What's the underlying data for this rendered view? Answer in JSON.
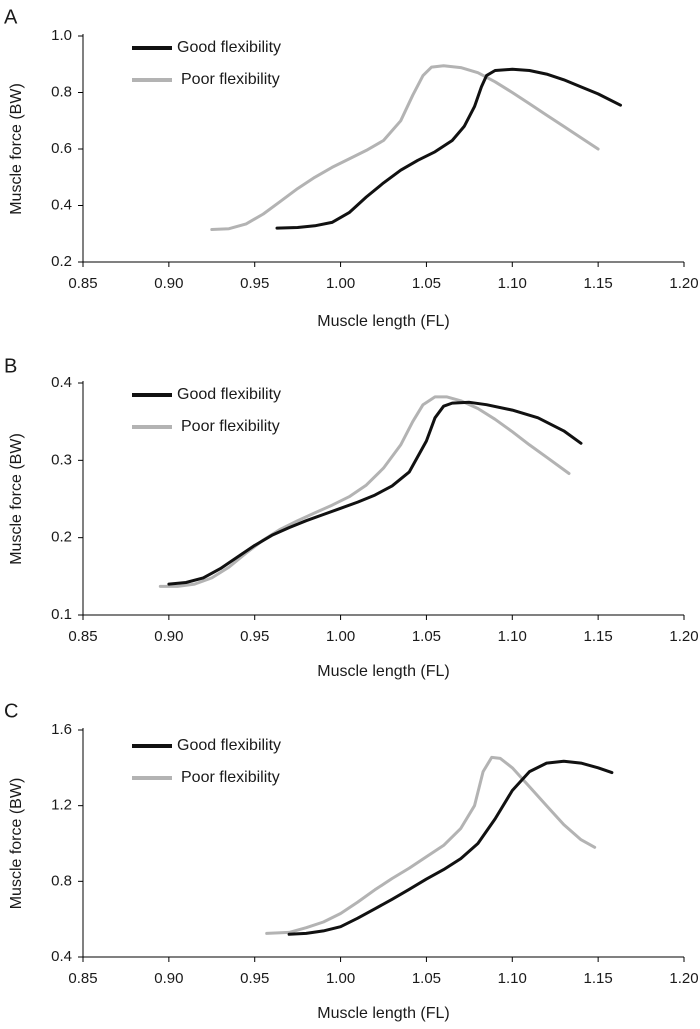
{
  "colors": {
    "good": "#111111",
    "poor": "#b3b3b3",
    "axis": "#000000"
  },
  "chart_data": [
    {
      "type": "line",
      "panel_label": "A",
      "xlabel": "Muscle length (FL)",
      "ylabel": "Muscle force (BW)",
      "xlim": [
        0.85,
        1.2
      ],
      "ylim": [
        0.2,
        1.0
      ],
      "xticks": [
        "0.85",
        "0.90",
        "0.95",
        "1.00",
        "1.05",
        "1.10",
        "1.15",
        "1.20"
      ],
      "xtick_values": [
        0.85,
        0.9,
        0.95,
        1.0,
        1.05,
        1.1,
        1.15,
        1.2
      ],
      "yticks": [
        "0.2",
        "0.4",
        "0.6",
        "0.8",
        "1.0"
      ],
      "ytick_values": [
        0.2,
        0.4,
        0.6,
        0.8,
        1.0
      ],
      "legend_position": "top-left",
      "series": [
        {
          "name": "Good flexibility",
          "color": "#111111",
          "x": [
            0.963,
            0.975,
            0.985,
            0.995,
            1.005,
            1.015,
            1.025,
            1.035,
            1.045,
            1.055,
            1.065,
            1.072,
            1.078,
            1.082,
            1.085,
            1.09,
            1.1,
            1.11,
            1.12,
            1.13,
            1.14,
            1.15,
            1.163
          ],
          "y": [
            0.32,
            0.322,
            0.328,
            0.34,
            0.375,
            0.43,
            0.48,
            0.525,
            0.56,
            0.59,
            0.63,
            0.68,
            0.75,
            0.82,
            0.86,
            0.878,
            0.882,
            0.878,
            0.865,
            0.845,
            0.82,
            0.795,
            0.755
          ]
        },
        {
          "name": "Poor flexibility",
          "color": "#b3b3b3",
          "x": [
            0.925,
            0.935,
            0.945,
            0.955,
            0.965,
            0.975,
            0.985,
            0.995,
            1.005,
            1.015,
            1.025,
            1.035,
            1.042,
            1.048,
            1.053,
            1.06,
            1.07,
            1.08,
            1.09,
            1.1,
            1.11,
            1.12,
            1.13,
            1.14,
            1.15
          ],
          "y": [
            0.315,
            0.318,
            0.335,
            0.37,
            0.415,
            0.46,
            0.5,
            0.535,
            0.565,
            0.595,
            0.63,
            0.7,
            0.79,
            0.86,
            0.89,
            0.895,
            0.888,
            0.87,
            0.838,
            0.8,
            0.76,
            0.72,
            0.68,
            0.64,
            0.6
          ]
        }
      ]
    },
    {
      "type": "line",
      "panel_label": "B",
      "xlabel": "Muscle length (FL)",
      "ylabel": "Muscle force (BW)",
      "xlim": [
        0.85,
        1.2
      ],
      "ylim": [
        0.1,
        0.4
      ],
      "xticks": [
        "0.85",
        "0.90",
        "0.95",
        "1.00",
        "1.05",
        "1.10",
        "1.15",
        "1.20"
      ],
      "xtick_values": [
        0.85,
        0.9,
        0.95,
        1.0,
        1.05,
        1.1,
        1.15,
        1.2
      ],
      "yticks": [
        "0.1",
        "0.2",
        "0.3",
        "0.4"
      ],
      "ytick_values": [
        0.1,
        0.2,
        0.3,
        0.4
      ],
      "legend_position": "top-left",
      "series": [
        {
          "name": "Good flexibility",
          "color": "#111111",
          "x": [
            0.9,
            0.91,
            0.92,
            0.93,
            0.94,
            0.95,
            0.96,
            0.97,
            0.98,
            0.99,
            1.0,
            1.01,
            1.02,
            1.03,
            1.04,
            1.05,
            1.055,
            1.06,
            1.065,
            1.075,
            1.085,
            1.1,
            1.115,
            1.13,
            1.14
          ],
          "y": [
            0.14,
            0.142,
            0.148,
            0.16,
            0.175,
            0.19,
            0.203,
            0.213,
            0.222,
            0.23,
            0.238,
            0.246,
            0.255,
            0.267,
            0.285,
            0.325,
            0.355,
            0.37,
            0.374,
            0.375,
            0.372,
            0.365,
            0.355,
            0.338,
            0.322
          ]
        },
        {
          "name": "Poor flexibility",
          "color": "#b3b3b3",
          "x": [
            0.895,
            0.905,
            0.915,
            0.925,
            0.935,
            0.945,
            0.955,
            0.965,
            0.975,
            0.985,
            0.995,
            1.005,
            1.015,
            1.025,
            1.035,
            1.042,
            1.048,
            1.055,
            1.062,
            1.07,
            1.08,
            1.09,
            1.1,
            1.11,
            1.12,
            1.133
          ],
          "y": [
            0.137,
            0.137,
            0.14,
            0.148,
            0.162,
            0.18,
            0.197,
            0.211,
            0.222,
            0.232,
            0.242,
            0.253,
            0.268,
            0.29,
            0.32,
            0.35,
            0.372,
            0.382,
            0.382,
            0.377,
            0.367,
            0.353,
            0.337,
            0.32,
            0.304,
            0.283
          ]
        }
      ]
    },
    {
      "type": "line",
      "panel_label": "C",
      "xlabel": "Muscle length (FL)",
      "ylabel": "Muscle force (BW)",
      "xlim": [
        0.85,
        1.2
      ],
      "ylim": [
        0.4,
        1.6
      ],
      "xticks": [
        "0.85",
        "0.90",
        "0.95",
        "1.00",
        "1.05",
        "1.10",
        "1.15",
        "1.20"
      ],
      "xtick_values": [
        0.85,
        0.9,
        0.95,
        1.0,
        1.05,
        1.1,
        1.15,
        1.2
      ],
      "yticks": [
        "0.4",
        "0.8",
        "1.2",
        "1.6"
      ],
      "ytick_values": [
        0.4,
        0.8,
        1.2,
        1.6
      ],
      "legend_position": "top-left",
      "series": [
        {
          "name": "Good flexibility",
          "color": "#111111",
          "x": [
            0.97,
            0.98,
            0.99,
            1.0,
            1.01,
            1.02,
            1.03,
            1.04,
            1.05,
            1.06,
            1.07,
            1.08,
            1.09,
            1.1,
            1.11,
            1.12,
            1.13,
            1.14,
            1.15,
            1.158
          ],
          "y": [
            0.52,
            0.525,
            0.538,
            0.56,
            0.605,
            0.655,
            0.705,
            0.758,
            0.812,
            0.862,
            0.92,
            1.0,
            1.13,
            1.28,
            1.38,
            1.425,
            1.435,
            1.425,
            1.4,
            1.375
          ]
        },
        {
          "name": "Poor flexibility",
          "color": "#b3b3b3",
          "x": [
            0.957,
            0.97,
            0.98,
            0.99,
            1.0,
            1.01,
            1.02,
            1.03,
            1.04,
            1.05,
            1.06,
            1.07,
            1.078,
            1.083,
            1.088,
            1.093,
            1.1,
            1.11,
            1.12,
            1.13,
            1.14,
            1.148
          ],
          "y": [
            0.525,
            0.53,
            0.555,
            0.585,
            0.63,
            0.69,
            0.755,
            0.815,
            0.87,
            0.93,
            0.99,
            1.08,
            1.2,
            1.38,
            1.455,
            1.45,
            1.4,
            1.3,
            1.2,
            1.1,
            1.02,
            0.98
          ]
        }
      ]
    }
  ]
}
